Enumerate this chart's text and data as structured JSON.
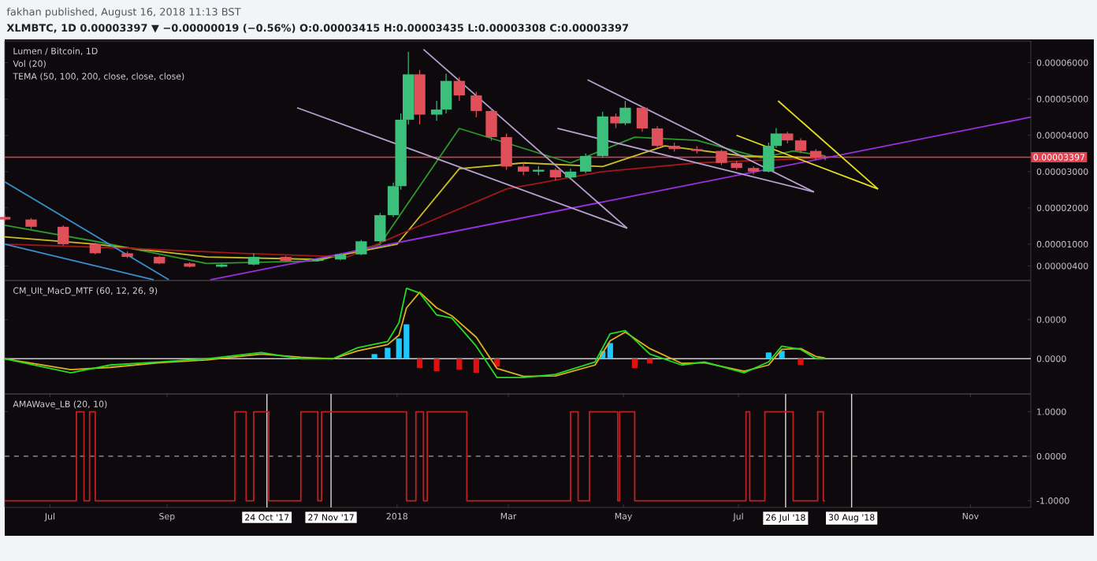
{
  "chart_data": [
    {
      "type": "candlestick",
      "title": "fakhan published, August 16, 2018 11:13 BST",
      "subtitle": "XLMBTC, 1D 0.00003397 ▼ −0.00000019 (−0.56%) O:0.00003415 H:0.00003435 L:0.00003308 C:0.00003397",
      "annotations": [
        "Lumen / Bitcoin, 1D",
        "Vol (20)",
        "TEMA (50, 100, 200, close, close, close)"
      ],
      "x": [
        "2017-06-07",
        "2017-06-21",
        "2017-07-08",
        "2017-07-25",
        "2017-08-11",
        "2017-08-28",
        "2017-09-13",
        "2017-09-30",
        "2017-10-17",
        "2017-11-03",
        "2017-11-20",
        "2017-12-02",
        "2017-12-13",
        "2017-12-23",
        "2017-12-30",
        "2018-01-03",
        "2018-01-07",
        "2018-01-13",
        "2018-01-22",
        "2018-01-27",
        "2018-02-03",
        "2018-02-12",
        "2018-02-20",
        "2018-02-28",
        "2018-03-09",
        "2018-03-17",
        "2018-03-26",
        "2018-04-03",
        "2018-04-11",
        "2018-04-20",
        "2018-04-27",
        "2018-05-02",
        "2018-05-11",
        "2018-05-19",
        "2018-05-28",
        "2018-06-09",
        "2018-06-22",
        "2018-06-30",
        "2018-07-09",
        "2018-07-17",
        "2018-07-21",
        "2018-07-27",
        "2018-08-03",
        "2018-08-11",
        "2018-08-16"
      ],
      "ohlc": [
        [
          1.75e-05,
          1.82e-05,
          1.62e-05,
          1.68e-05
        ],
        [
          1.68e-05,
          1.72e-05,
          1.42e-05,
          1.48e-05
        ],
        [
          1.48e-05,
          1.52e-05,
          9.6e-06,
          1e-05
        ],
        [
          1e-05,
          1.04e-05,
          7.2e-06,
          7.5e-06
        ],
        [
          7.5e-06,
          8e-06,
          6.2e-06,
          6.5e-06
        ],
        [
          6.5e-06,
          6.8e-06,
          4.5e-06,
          4.7e-06
        ],
        [
          4.7e-06,
          5e-06,
          3.6e-06,
          3.8e-06
        ],
        [
          3.8e-06,
          4.6e-06,
          3.6e-06,
          4.4e-06
        ],
        [
          4.4e-06,
          7.5e-06,
          4.2e-06,
          6.5e-06
        ],
        [
          6.5e-06,
          6.8e-06,
          5.2e-06,
          5.4e-06
        ],
        [
          5.4e-06,
          6.1e-06,
          5.2e-06,
          5.8e-06
        ],
        [
          5.8e-06,
          7.5e-06,
          5.6e-06,
          7.2e-06
        ],
        [
          7.2e-06,
          1.12e-05,
          7e-06,
          1.08e-05
        ],
        [
          1.08e-05,
          1.86e-05,
          1.04e-05,
          1.8e-05
        ],
        [
          1.8e-05,
          2.7e-05,
          1.74e-05,
          2.6e-05
        ],
        [
          2.6e-05,
          4.6e-05,
          2.5e-05,
          4.43e-05
        ],
        [
          4.43e-05,
          6.3e-05,
          4.3e-05,
          5.68e-05
        ],
        [
          5.68e-05,
          5.8e-05,
          4.3e-05,
          4.57e-05
        ],
        [
          4.57e-05,
          4.95e-05,
          4.4e-05,
          4.71e-05
        ],
        [
          4.71e-05,
          5.7e-05,
          4.6e-05,
          5.5e-05
        ],
        [
          5.5e-05,
          5.6e-05,
          4.95e-05,
          5.1e-05
        ],
        [
          5.1e-05,
          5.2e-05,
          4.5e-05,
          4.67e-05
        ],
        [
          4.67e-05,
          4.75e-05,
          3.85e-05,
          3.95e-05
        ],
        [
          3.95e-05,
          4.05e-05,
          3.05e-05,
          3.14e-05
        ],
        [
          3.14e-05,
          3.25e-05,
          2.9e-05,
          3e-05
        ],
        [
          3e-05,
          3.15e-05,
          2.9e-05,
          3.05e-05
        ],
        [
          3.05e-05,
          3.1e-05,
          2.75e-05,
          2.84e-05
        ],
        [
          2.84e-05,
          3.08e-05,
          2.78e-05,
          3e-05
        ],
        [
          3e-05,
          3.5e-05,
          2.95e-05,
          3.43e-05
        ],
        [
          3.43e-05,
          4.65e-05,
          3.38e-05,
          4.52e-05
        ],
        [
          4.52e-05,
          4.6e-05,
          4.2e-05,
          4.33e-05
        ],
        [
          4.33e-05,
          4.95e-05,
          4.28e-05,
          4.76e-05
        ],
        [
          4.76e-05,
          4.8e-05,
          4.1e-05,
          4.19e-05
        ],
        [
          4.19e-05,
          4.25e-05,
          3.65e-05,
          3.71e-05
        ],
        [
          3.71e-05,
          3.8e-05,
          3.55e-05,
          3.62e-05
        ],
        [
          3.62e-05,
          3.7e-05,
          3.5e-05,
          3.57e-05
        ],
        [
          3.57e-05,
          3.6e-05,
          3.18e-05,
          3.24e-05
        ],
        [
          3.24e-05,
          3.3e-05,
          3.05e-05,
          3.1e-05
        ],
        [
          3.1e-05,
          3.15e-05,
          2.92e-05,
          3e-05
        ],
        [
          3e-05,
          3.8e-05,
          2.98e-05,
          3.71e-05
        ],
        [
          3.71e-05,
          4.2e-05,
          3.65e-05,
          4.05e-05
        ],
        [
          4.05e-05,
          4.1e-05,
          3.78e-05,
          3.86e-05
        ],
        [
          3.86e-05,
          3.92e-05,
          3.5e-05,
          3.57e-05
        ],
        [
          3.57e-05,
          3.62e-05,
          3.32e-05,
          3.38e-05
        ],
        [
          3.415e-05,
          3.435e-05,
          3.308e-05,
          3.397e-05
        ]
      ],
      "series": [
        {
          "type": "line",
          "color": "#2e9a2e",
          "x": [
            "2017-06-07",
            "2017-07-25",
            "2017-09-22",
            "2017-11-20",
            "2017-12-23",
            "2018-01-13",
            "2018-02-03",
            "2018-02-28",
            "2018-04-03",
            "2018-05-07",
            "2018-06-09",
            "2018-07-13",
            "2018-07-30",
            "2018-08-16"
          ],
          "values": [
            1.52e-05,
            1.08e-05,
            4.7e-06,
            5.4e-06,
            1e-05,
            2.6e-05,
            4.19e-05,
            null,
            3.24e-05,
            3.95e-05,
            3.86e-05,
            3.38e-05,
            3.57e-05,
            3.43e-05
          ]
        },
        {
          "type": "line",
          "color": "#c8c020",
          "x": [
            "2017-06-07",
            "2017-07-25",
            "2017-09-22",
            "2017-11-20",
            "2018-01-01",
            "2018-02-03",
            "2018-03-09",
            "2018-04-20",
            "2018-05-23",
            "2018-07-04",
            "2018-08-16"
          ],
          "values": [
            1.2e-05,
            1e-05,
            6.5e-06,
            5.8e-06,
            1e-05,
            3.08e-05,
            3.24e-05,
            3.14e-05,
            3.71e-05,
            3.43e-05,
            3.38e-05
          ]
        },
        {
          "type": "line",
          "color": "#a01818",
          "x": [
            "2017-06-07",
            "2017-08-11",
            "2017-10-09",
            "2017-12-06",
            "2018-01-17",
            "2018-02-28",
            "2018-04-20",
            "2018-06-09",
            "2018-08-16"
          ],
          "values": [
            1e-05,
            8.9e-06,
            7.5e-06,
            6.5e-06,
            1.6e-05,
            2.52e-05,
            3e-05,
            3.24e-05,
            3.38e-05
          ]
        },
        {
          "type": "line",
          "color": "#9b30e0",
          "x": [
            "2017-09-24",
            "2018-12-03"
          ],
          "values": [
            2e-07,
            4.5e-05
          ]
        },
        {
          "type": "line",
          "color": "#3a8fd0",
          "x": [
            "2017-06-07",
            "2017-09-02"
          ],
          "values": [
            2.72e-05,
            2e-07
          ]
        },
        {
          "type": "line",
          "color": "#3a8fd0",
          "x": [
            "2017-06-07",
            "2017-08-25"
          ],
          "values": [
            1e-05,
            2e-07
          ]
        },
        {
          "type": "line",
          "color": "#b8a0d0",
          "x": [
            "2017-11-09",
            "2018-05-03"
          ],
          "values": [
            4.76e-05,
            1.44e-05
          ]
        },
        {
          "type": "line",
          "color": "#b8a0d0",
          "x": [
            "2018-01-15",
            "2018-05-03"
          ],
          "values": [
            6.37e-05,
            1.44e-05
          ]
        },
        {
          "type": "line",
          "color": "#b8a0d0",
          "x": [
            "2018-04-12",
            "2018-08-10"
          ],
          "values": [
            5.53e-05,
            2.44e-05
          ]
        },
        {
          "type": "line",
          "color": "#b8a0d0",
          "x": [
            "2018-03-27",
            "2018-08-10"
          ],
          "values": [
            4.19e-05,
            2.44e-05
          ]
        },
        {
          "type": "line",
          "color": "#e8e020",
          "x": [
            "2018-07-22",
            "2018-09-13"
          ],
          "values": [
            4.95e-05,
            2.52e-05
          ]
        },
        {
          "type": "line",
          "color": "#e8e020",
          "x": [
            "2018-06-30",
            "2018-09-13"
          ],
          "values": [
            4e-05,
            2.52e-05
          ]
        }
      ],
      "xlim": [
        "2017-06-07",
        "2018-12-03"
      ],
      "ylim": [
        0,
        6.6e-05
      ],
      "yticks": [
        {
          "value": 6e-05,
          "label": "0.00006000"
        },
        {
          "value": 5e-05,
          "label": "0.00005000"
        },
        {
          "value": 4e-05,
          "label": "0.00004000"
        },
        {
          "value": 3e-05,
          "label": "0.00003000"
        },
        {
          "value": 2e-05,
          "label": "0.00002000"
        },
        {
          "value": 1e-05,
          "label": "0.00001000"
        },
        {
          "value": 4e-06,
          "label": "0.00000400"
        }
      ],
      "tick_labels": "y",
      "ref_lines": [
        {
          "axis": "y",
          "value": 3.397e-05,
          "label": "0.00003397",
          "color": "#e0404f"
        }
      ]
    },
    {
      "type": "line",
      "annotations": [
        "CM_Ult_MacD_MTF (60, 12, 26, 9)"
      ],
      "series": [
        {
          "type": "bar",
          "colors": [
            "#1ec8ff",
            "#1ec8ff",
            "#1ec8ff",
            "#1ec8ff",
            "#e01010",
            "#e01010",
            "#e01010",
            "#e01010",
            "#e01010",
            "#1ec8ff",
            "#1ec8ff",
            "#e01010",
            "#e01010",
            "#1ec8ff",
            "#1ec8ff",
            "#e01010"
          ],
          "x": [
            "2017-12-20",
            "2017-12-27",
            "2018-01-02",
            "2018-01-06",
            "2018-01-13",
            "2018-01-22",
            "2018-02-03",
            "2018-02-12",
            "2018-02-23",
            "2018-04-20",
            "2018-04-24",
            "2018-05-07",
            "2018-05-15",
            "2018-07-17",
            "2018-07-24",
            "2018-08-03"
          ],
          "values": [
            1.2e-06,
            2.8e-06,
            5.2e-06,
            8.8e-06,
            -2.4e-06,
            -3.2e-06,
            -2.8e-06,
            -3.6e-06,
            -2e-06,
            2e-06,
            4e-06,
            -2.4e-06,
            -1.2e-06,
            1.6e-06,
            2e-06,
            -1.6e-06
          ]
        },
        {
          "color": "#e0b020",
          "x": [
            "2017-06-07",
            "2017-07-12",
            "2017-08-02",
            "2017-08-28",
            "2017-09-22",
            "2017-10-21",
            "2017-11-11",
            "2017-11-28",
            "2017-12-11",
            "2017-12-27",
            "2018-01-02",
            "2018-01-06",
            "2018-01-13",
            "2018-01-22",
            "2018-01-30",
            "2018-02-12",
            "2018-02-23",
            "2018-03-09",
            "2018-03-26",
            "2018-04-16",
            "2018-04-24",
            "2018-05-02",
            "2018-05-15",
            "2018-06-01",
            "2018-06-13",
            "2018-07-04",
            "2018-07-17",
            "2018-07-24",
            "2018-08-03",
            "2018-08-11",
            "2018-08-16"
          ],
          "values": [
            0,
            -2.8e-06,
            -2.2e-06,
            -1e-06,
            -3e-07,
            1.2e-06,
            4e-07,
            0,
            2e-06,
            3.6e-06,
            6e-06,
            1.3e-05,
            1.7e-05,
            1.3e-05,
            1.1e-05,
            5.5e-06,
            -2.5e-06,
            -4.5e-06,
            -4.4e-06,
            -1.6e-06,
            4.6e-06,
            6.8e-06,
            2.6e-06,
            -1.2e-06,
            -1e-06,
            -3.2e-06,
            -1.6e-06,
            2.4e-06,
            2.6e-06,
            6e-07,
            2e-07
          ]
        },
        {
          "color": "#22dd22",
          "x": [
            "2017-06-07",
            "2017-07-12",
            "2017-08-02",
            "2017-08-28",
            "2017-09-22",
            "2017-10-21",
            "2017-11-11",
            "2017-11-28",
            "2017-12-11",
            "2017-12-27",
            "2018-01-02",
            "2018-01-06",
            "2018-01-13",
            "2018-01-22",
            "2018-01-30",
            "2018-02-12",
            "2018-02-23",
            "2018-03-09",
            "2018-03-26",
            "2018-04-16",
            "2018-04-24",
            "2018-05-02",
            "2018-05-15",
            "2018-06-01",
            "2018-06-13",
            "2018-07-04",
            "2018-07-17",
            "2018-07-24",
            "2018-08-03",
            "2018-08-11",
            "2018-08-16"
          ],
          "values": [
            0,
            -3.6e-06,
            -1.6e-06,
            -8e-07,
            0,
            1.6e-06,
            0,
            0,
            2.8e-06,
            4.4e-06,
            9.2e-06,
            1.8e-05,
            1.68e-05,
            1.12e-05,
            1.04e-05,
            3.2e-06,
            -4.8e-06,
            -4.8e-06,
            -4e-06,
            -8e-07,
            6.4e-06,
            7.2e-06,
            1.2e-06,
            -1.6e-06,
            -8e-07,
            -3.6e-06,
            -8e-07,
            3.2e-06,
            2.4e-06,
            0,
            0
          ]
        }
      ],
      "xlim": [
        "2017-06-07",
        "2018-12-03"
      ],
      "ylim": [
        -9e-06,
        2e-05
      ],
      "yticks": [
        {
          "value": 1e-05,
          "label": "0.0000"
        },
        {
          "value": 0,
          "label": "0.0000"
        }
      ],
      "tick_labels": "y",
      "ref_lines": [
        {
          "axis": "y",
          "value": 0,
          "color": "#cccccc"
        }
      ]
    },
    {
      "type": "step",
      "annotations": [
        "AMAWave_LB (20, 10)"
      ],
      "series": [
        {
          "color": "#c02020",
          "x": [
            "2017-06-07",
            "2017-07-15",
            "2017-07-19",
            "2017-07-22",
            "2017-07-25",
            "2017-10-07",
            "2017-10-13",
            "2017-10-17",
            "2017-10-25",
            "2017-11-11",
            "2017-11-20",
            "2017-11-22",
            "2018-01-06",
            "2018-01-11",
            "2018-01-15",
            "2018-01-17",
            "2018-02-07",
            "2018-04-03",
            "2018-04-07",
            "2018-04-13",
            "2018-04-28",
            "2018-04-29",
            "2018-05-07",
            "2018-07-05",
            "2018-07-07",
            "2018-07-15",
            "2018-07-30",
            "2018-08-12",
            "2018-08-15",
            "2018-08-16"
          ],
          "values": [
            -1,
            1,
            -1,
            1,
            -1,
            1,
            -1,
            1,
            -1,
            1,
            -1,
            1,
            -1,
            1,
            -1,
            1,
            -1,
            1,
            -1,
            1,
            -1,
            1,
            -1,
            1,
            -1,
            1,
            -1,
            1,
            -1,
            -1
          ]
        }
      ],
      "xlim": [
        "2017-06-07",
        "2018-12-03"
      ],
      "ylim": [
        -1.15,
        1.4
      ],
      "xticks": [
        {
          "value": "2017-07-01",
          "label": "Jul"
        },
        {
          "value": "2017-09-01",
          "label": "Sep"
        },
        {
          "value": "2018-01-01",
          "label": "2018"
        },
        {
          "value": "2018-03-01",
          "label": "Mar"
        },
        {
          "value": "2018-05-01",
          "label": "May"
        },
        {
          "value": "2018-07-01",
          "label": "Jul"
        },
        {
          "value": "2018-11-01",
          "label": "Nov"
        }
      ],
      "yticks": [
        {
          "value": 1,
          "label": "1.0000"
        },
        {
          "value": 0,
          "label": "0.0000"
        },
        {
          "value": -1,
          "label": "-1.0000"
        }
      ],
      "ref_lines": [
        {
          "axis": "y",
          "value": 0,
          "color": "#888888",
          "line_style": "dashed"
        },
        {
          "axis": "x",
          "value": "2017-10-24",
          "label": "24 Oct '17",
          "color": "#dddddd"
        },
        {
          "axis": "x",
          "value": "2017-11-27",
          "label": "27 Nov '17",
          "color": "#dddddd"
        },
        {
          "axis": "x",
          "value": "2018-07-26",
          "label": "26 Jul '18",
          "color": "#dddddd"
        },
        {
          "axis": "x",
          "value": "2018-08-30",
          "label": "30 Aug '18",
          "color": "#dddddd"
        }
      ]
    }
  ]
}
